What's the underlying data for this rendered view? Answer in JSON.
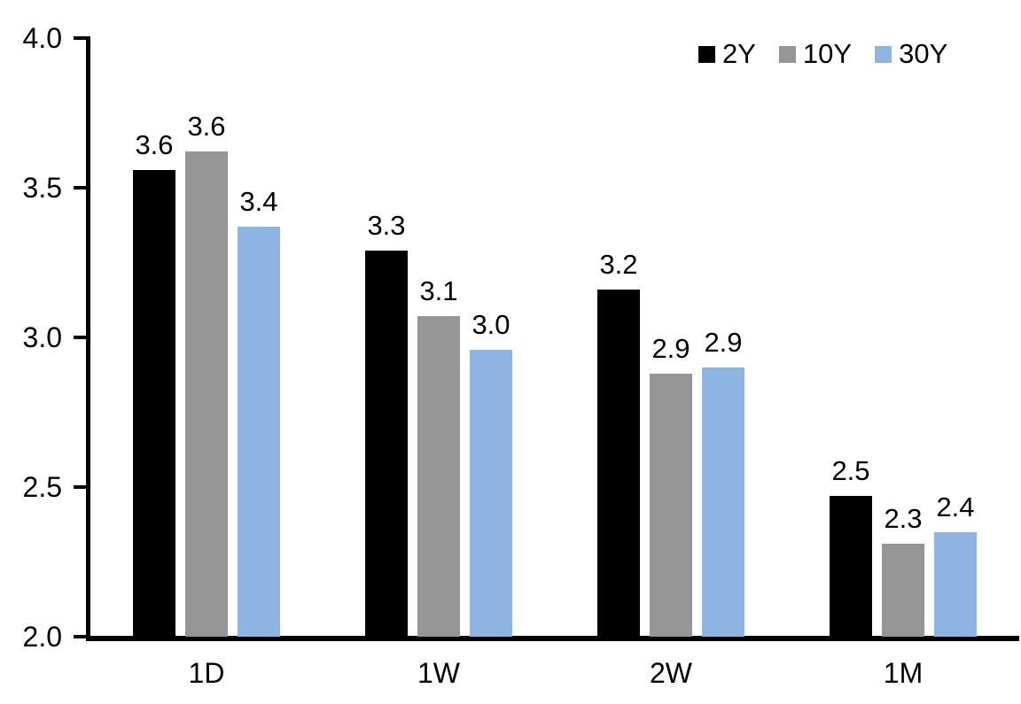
{
  "chart_data": {
    "type": "bar",
    "title": "",
    "xlabel": "",
    "ylabel": "",
    "categories": [
      "1D",
      "1W",
      "2W",
      "1M"
    ],
    "series": [
      {
        "name": "2Y",
        "color": "#000000",
        "values": [
          3.56,
          3.29,
          3.16,
          2.47
        ],
        "labels": [
          "3.6",
          "3.3",
          "3.2",
          "2.5"
        ]
      },
      {
        "name": "10Y",
        "color": "#969696",
        "values": [
          3.62,
          3.07,
          2.88,
          2.31
        ],
        "labels": [
          "3.6",
          "3.1",
          "2.9",
          "2.3"
        ]
      },
      {
        "name": "30Y",
        "color": "#8DB4E2",
        "values": [
          3.37,
          2.96,
          2.9,
          2.35
        ],
        "labels": [
          "3.4",
          "3.0",
          "2.9",
          "2.4"
        ]
      }
    ],
    "ylim": [
      2.0,
      4.0
    ],
    "yticks": [
      4.0,
      3.5,
      3.0,
      2.5,
      2.0
    ],
    "ytick_labels": [
      "4.0",
      "3.5",
      "3.0",
      "2.5",
      "2.0"
    ],
    "grid": false,
    "legend_position": "top-right",
    "axis_color": "#000000",
    "text_color": "#000000",
    "background_color": "#ffffff"
  }
}
